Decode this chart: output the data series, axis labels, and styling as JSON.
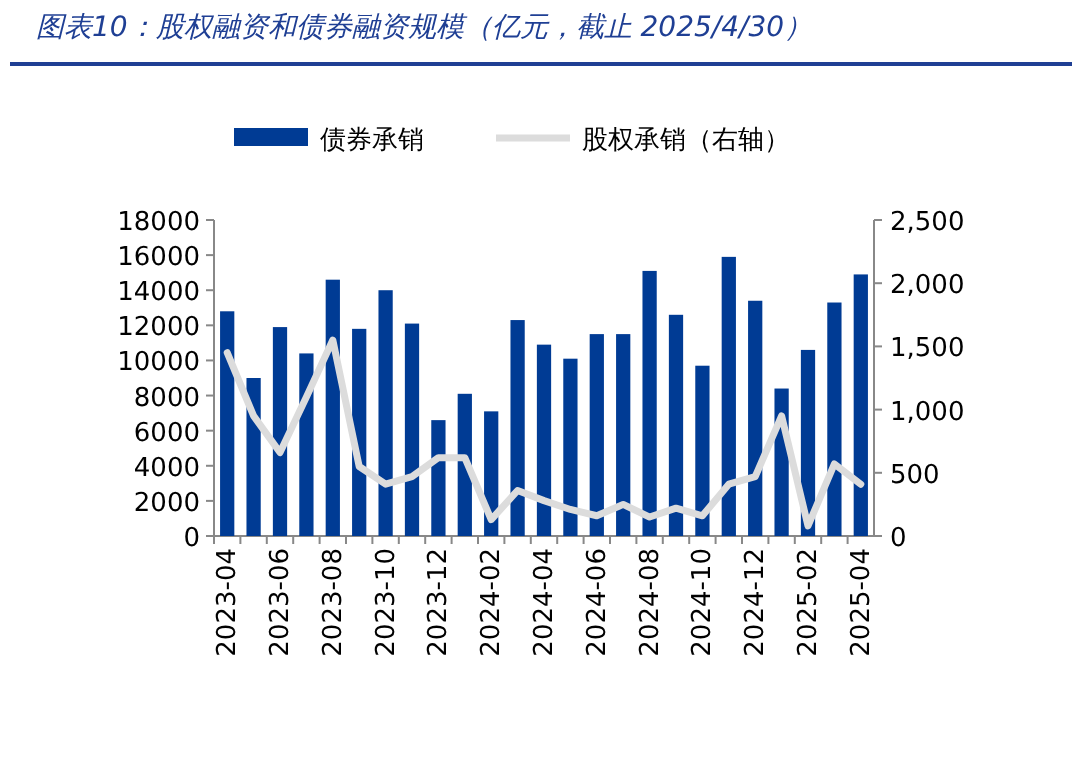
{
  "chart_data": {
    "type": "bar",
    "title": "图表10：股权融资和债券融资规模（亿元，截止 2025/4/30）",
    "categories": [
      "2023-04",
      null,
      "2023-06",
      null,
      "2023-08",
      null,
      "2023-10",
      null,
      "2023-12",
      null,
      "2024-02",
      null,
      "2024-04",
      null,
      "2024-06",
      null,
      "2024-08",
      null,
      "2024-10",
      null,
      "2024-12",
      null,
      "2025-02",
      null,
      "2025-04"
    ],
    "series": [
      {
        "name": "债券承销",
        "type": "bar",
        "color": "#003b94",
        "values": [
          12800,
          9000,
          11900,
          10400,
          14600,
          11800,
          14000,
          12100,
          6600,
          8100,
          7100,
          12300,
          10900,
          10100,
          11500,
          11500,
          15100,
          12600,
          9700,
          15900,
          13400,
          8400,
          10600,
          13300,
          14900
        ]
      },
      {
        "name": "股权承销（右轴）",
        "type": "line",
        "axis": "y2",
        "color": "#dcdcdc",
        "values": [
          1450,
          950,
          660,
          1100,
          1550,
          550,
          410,
          470,
          620,
          620,
          130,
          360,
          280,
          210,
          160,
          250,
          150,
          220,
          160,
          410,
          470,
          950,
          80,
          570,
          410
        ]
      }
    ],
    "ylim": [
      0,
      18000
    ],
    "yticks": [
      0,
      2000,
      4000,
      6000,
      8000,
      10000,
      12000,
      14000,
      16000,
      18000
    ],
    "y2lim": [
      0,
      2500
    ],
    "y2ticks": [
      0,
      {
        "value": 500,
        "label": "500"
      },
      {
        "value": 1000,
        "label": "1,000"
      },
      {
        "value": 1500,
        "label": "1,500"
      },
      {
        "value": 2000,
        "label": "2,000"
      },
      {
        "value": 2500,
        "label": "2,500"
      }
    ],
    "legend": "top",
    "grid": false
  }
}
